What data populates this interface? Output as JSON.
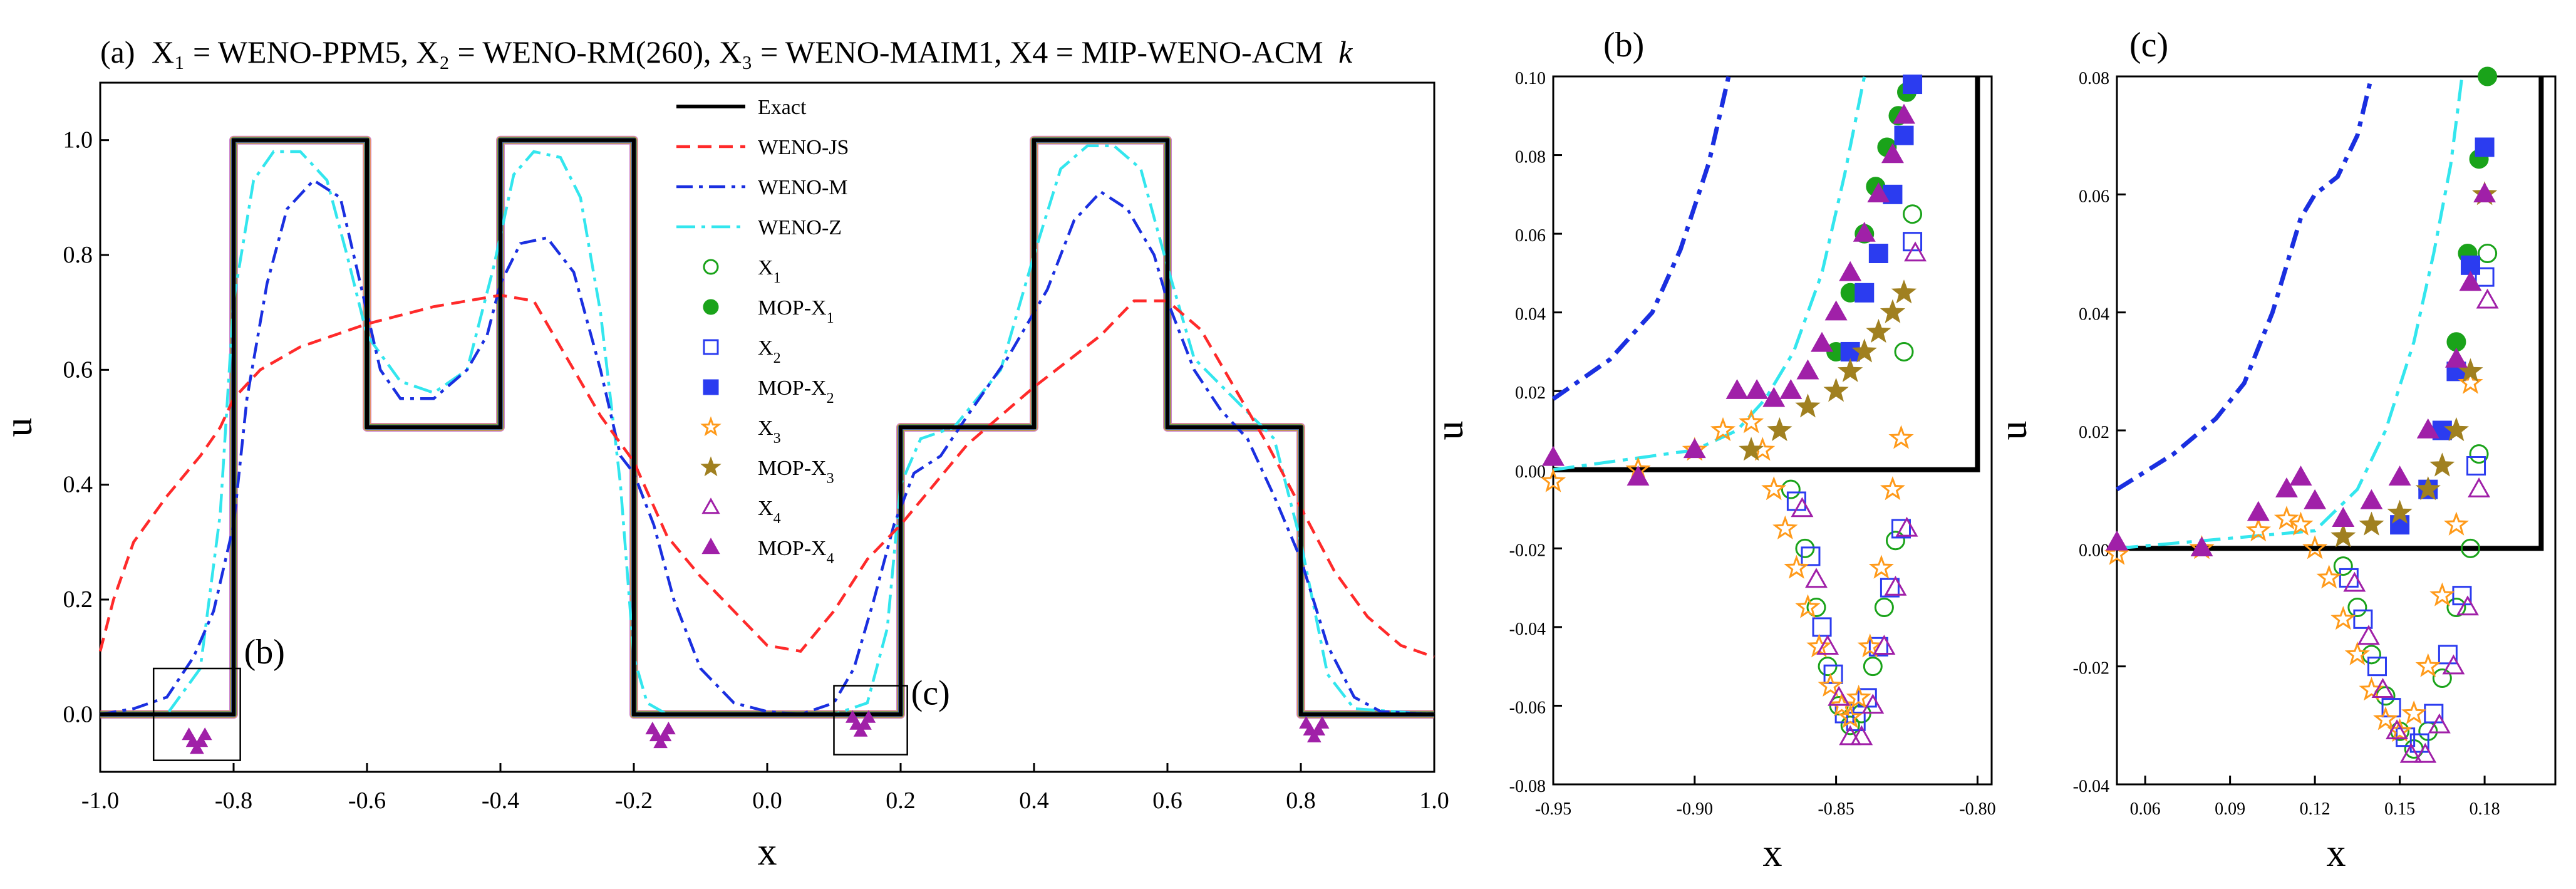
{
  "figure": {
    "title_prefix": "(a)",
    "title_text": "X₁ = WENO-PPM5, X₂ = WENO-RM(260), X₃ = WENO-MAIM1, X4 = MIP-WENO-ACM",
    "title_k": "k",
    "panel_b_label": "(b)",
    "panel_c_label": "(c)",
    "inset_b_label": "(b)",
    "inset_c_label": "(c)"
  },
  "colors": {
    "exact": "#000000",
    "weno_js": "#ff2a2a",
    "weno_m": "#1a2fe0",
    "weno_z": "#33e6ee",
    "x1": "#1aa31a",
    "x2": "#2b3cf0",
    "x3": "#ff9a1a",
    "x4": "#a020a8",
    "mop_x3": "#a08020"
  },
  "chart_data": [
    {
      "panel": "a",
      "type": "line",
      "xlabel": "x",
      "ylabel": "u",
      "xlim": [
        -1.0,
        1.0
      ],
      "ylim": [
        -0.1,
        1.1
      ],
      "x_ticks": [
        "-1.0",
        "-0.8",
        "-0.6",
        "-0.4",
        "-0.2",
        "0.0",
        "0.2",
        "0.4",
        "0.6",
        "0.8",
        "1.0"
      ],
      "y_ticks": [
        "0.0",
        "0.2",
        "0.4",
        "0.6",
        "0.8",
        "1.0"
      ],
      "legend": [
        {
          "name": "Exact",
          "sub": "",
          "style": "solid"
        },
        {
          "name": "WENO-JS",
          "sub": "",
          "style": "dash"
        },
        {
          "name": "WENO-M",
          "sub": "",
          "style": "dashdot"
        },
        {
          "name": "WENO-Z",
          "sub": "",
          "style": "dashdot-light"
        },
        {
          "name": "X",
          "sub": "1",
          "style": "circle"
        },
        {
          "name": "MOP-X",
          "sub": "1",
          "style": "dot"
        },
        {
          "name": "X",
          "sub": "2",
          "style": "square"
        },
        {
          "name": "MOP-X",
          "sub": "2",
          "style": "square-filled"
        },
        {
          "name": "X",
          "sub": "3",
          "style": "star"
        },
        {
          "name": "MOP-X",
          "sub": "3",
          "style": "star-filled"
        },
        {
          "name": "X",
          "sub": "4",
          "style": "triangle"
        },
        {
          "name": "MOP-X",
          "sub": "4",
          "style": "triangle-filled"
        }
      ],
      "series": [
        {
          "name": "Exact",
          "x": [
            -1.0,
            -0.8,
            -0.8,
            -0.6,
            -0.6,
            -0.4,
            -0.4,
            -0.2,
            -0.2,
            0.2,
            0.2,
            0.4,
            0.4,
            0.6,
            0.6,
            0.8,
            0.8,
            1.0
          ],
          "y": [
            0,
            0,
            1,
            1,
            0.5,
            0.5,
            1,
            1,
            0,
            0,
            0.5,
            0.5,
            1,
            1,
            0.5,
            0.5,
            0,
            0
          ]
        },
        {
          "name": "WENO-JS",
          "x": [
            -1.0,
            -0.98,
            -0.95,
            -0.9,
            -0.85,
            -0.82,
            -0.8,
            -0.76,
            -0.7,
            -0.6,
            -0.5,
            -0.4,
            -0.35,
            -0.3,
            -0.25,
            -0.2,
            -0.15,
            -0.1,
            -0.05,
            0.0,
            0.05,
            0.1,
            0.15,
            0.2,
            0.25,
            0.3,
            0.4,
            0.5,
            0.55,
            0.6,
            0.65,
            0.7,
            0.75,
            0.8,
            0.85,
            0.9,
            0.95,
            1.0
          ],
          "y": [
            0.11,
            0.2,
            0.3,
            0.38,
            0.45,
            0.5,
            0.55,
            0.6,
            0.64,
            0.68,
            0.71,
            0.73,
            0.72,
            0.62,
            0.52,
            0.44,
            0.31,
            0.24,
            0.18,
            0.12,
            0.11,
            0.18,
            0.27,
            0.33,
            0.4,
            0.47,
            0.57,
            0.66,
            0.72,
            0.72,
            0.67,
            0.57,
            0.47,
            0.36,
            0.25,
            0.17,
            0.12,
            0.1
          ]
        },
        {
          "name": "WENO-M",
          "x": [
            -1.0,
            -0.95,
            -0.9,
            -0.86,
            -0.83,
            -0.8,
            -0.78,
            -0.75,
            -0.72,
            -0.68,
            -0.64,
            -0.61,
            -0.58,
            -0.55,
            -0.5,
            -0.45,
            -0.42,
            -0.4,
            -0.37,
            -0.33,
            -0.29,
            -0.25,
            -0.22,
            -0.2,
            -0.17,
            -0.14,
            -0.1,
            -0.05,
            0.0,
            0.05,
            0.1,
            0.13,
            0.16,
            0.19,
            0.22,
            0.26,
            0.3,
            0.36,
            0.42,
            0.46,
            0.5,
            0.54,
            0.58,
            0.6,
            0.64,
            0.68,
            0.72,
            0.76,
            0.8,
            0.84,
            0.88,
            0.92,
            1.0
          ],
          "y": [
            0.0,
            0.01,
            0.03,
            0.1,
            0.18,
            0.33,
            0.55,
            0.75,
            0.88,
            0.93,
            0.9,
            0.75,
            0.6,
            0.55,
            0.55,
            0.6,
            0.66,
            0.75,
            0.82,
            0.83,
            0.77,
            0.6,
            0.45,
            0.42,
            0.33,
            0.2,
            0.08,
            0.02,
            0.005,
            0.0,
            0.02,
            0.08,
            0.2,
            0.33,
            0.42,
            0.45,
            0.52,
            0.62,
            0.74,
            0.86,
            0.91,
            0.88,
            0.8,
            0.72,
            0.6,
            0.53,
            0.48,
            0.38,
            0.27,
            0.12,
            0.03,
            0.005,
            0.0
          ]
        },
        {
          "name": "WENO-Z",
          "x": [
            -1.0,
            -0.9,
            -0.85,
            -0.82,
            -0.8,
            -0.77,
            -0.74,
            -0.7,
            -0.66,
            -0.63,
            -0.6,
            -0.55,
            -0.5,
            -0.45,
            -0.41,
            -0.38,
            -0.35,
            -0.31,
            -0.28,
            -0.25,
            -0.22,
            -0.2,
            -0.18,
            -0.15,
            -0.1,
            0.0,
            0.1,
            0.15,
            0.18,
            0.2,
            0.23,
            0.28,
            0.35,
            0.4,
            0.44,
            0.48,
            0.52,
            0.56,
            0.6,
            0.64,
            0.7,
            0.76,
            0.8,
            0.84,
            0.88,
            1.0
          ],
          "y": [
            0.0,
            0.0,
            0.08,
            0.35,
            0.72,
            0.93,
            0.98,
            0.98,
            0.93,
            0.8,
            0.66,
            0.58,
            0.56,
            0.6,
            0.78,
            0.94,
            0.98,
            0.97,
            0.9,
            0.7,
            0.4,
            0.1,
            0.02,
            0.0,
            0.0,
            0.0,
            0.0,
            0.02,
            0.15,
            0.4,
            0.48,
            0.5,
            0.6,
            0.8,
            0.95,
            0.99,
            0.99,
            0.95,
            0.78,
            0.62,
            0.55,
            0.48,
            0.3,
            0.07,
            0.01,
            0.0
          ]
        }
      ]
    },
    {
      "panel": "b",
      "type": "scatter",
      "xlabel": "x",
      "ylabel": "u",
      "xlim": [
        -0.95,
        -0.795
      ],
      "ylim": [
        -0.08,
        0.1
      ],
      "x_ticks": [
        "-0.95",
        "-0.90",
        "-0.85",
        "-0.80"
      ],
      "y_ticks": [
        "-0.08",
        "-0.06",
        "-0.04",
        "-0.02",
        "0.00",
        "0.02",
        "0.04",
        "0.06",
        "0.08",
        "0.10"
      ],
      "exact": {
        "x": [
          -0.95,
          -0.8,
          -0.8
        ],
        "y": [
          0,
          0,
          0.1
        ]
      },
      "weno_m": {
        "x": [
          -0.95,
          -0.93,
          -0.915,
          -0.905,
          -0.895,
          -0.888
        ],
        "y": [
          0.018,
          0.028,
          0.04,
          0.056,
          0.078,
          0.1
        ]
      },
      "weno_z": {
        "x": [
          -0.95,
          -0.9,
          -0.885,
          -0.875,
          -0.865,
          -0.855,
          -0.847,
          -0.84
        ],
        "y": [
          0.0,
          0.005,
          0.01,
          0.018,
          0.03,
          0.05,
          0.075,
          0.1
        ]
      },
      "markers": [
        {
          "name": "X1",
          "x": [
            -0.866,
            -0.861,
            -0.857,
            -0.853,
            -0.849,
            -0.845,
            -0.841,
            -0.837,
            -0.833,
            -0.829,
            -0.826,
            -0.823
          ],
          "y": [
            -0.005,
            -0.02,
            -0.035,
            -0.05,
            -0.06,
            -0.065,
            -0.062,
            -0.05,
            -0.035,
            -0.018,
            0.03,
            0.065
          ]
        },
        {
          "name": "MOP-X1",
          "x": [
            -0.85,
            -0.845,
            -0.84,
            -0.836,
            -0.832,
            -0.828,
            -0.825
          ],
          "y": [
            0.03,
            0.045,
            0.06,
            0.072,
            0.082,
            0.09,
            0.096
          ]
        },
        {
          "name": "X2",
          "x": [
            -0.864,
            -0.859,
            -0.855,
            -0.851,
            -0.847,
            -0.843,
            -0.839,
            -0.835,
            -0.831,
            -0.827,
            -0.823
          ],
          "y": [
            -0.008,
            -0.022,
            -0.04,
            -0.052,
            -0.062,
            -0.064,
            -0.058,
            -0.045,
            -0.03,
            -0.015,
            0.058
          ]
        },
        {
          "name": "MOP-X2",
          "x": [
            -0.845,
            -0.84,
            -0.835,
            -0.83,
            -0.826,
            -0.823
          ],
          "y": [
            0.03,
            0.045,
            0.055,
            0.07,
            0.085,
            0.098
          ]
        },
        {
          "name": "X3",
          "x": [
            -0.95,
            -0.92,
            -0.9,
            -0.89,
            -0.88,
            -0.876,
            -0.872,
            -0.868,
            -0.864,
            -0.86,
            -0.856,
            -0.852,
            -0.848,
            -0.845,
            -0.842,
            -0.838,
            -0.834,
            -0.83,
            -0.827
          ],
          "y": [
            -0.003,
            0.0,
            0.005,
            0.01,
            0.012,
            0.005,
            -0.005,
            -0.015,
            -0.025,
            -0.035,
            -0.045,
            -0.055,
            -0.06,
            -0.063,
            -0.058,
            -0.045,
            -0.025,
            -0.005,
            0.008
          ]
        },
        {
          "name": "MOP-X3",
          "x": [
            -0.88,
            -0.87,
            -0.86,
            -0.85,
            -0.845,
            -0.84,
            -0.835,
            -0.83,
            -0.826
          ],
          "y": [
            0.005,
            0.01,
            0.016,
            0.02,
            0.025,
            0.03,
            0.035,
            0.04,
            0.045
          ]
        },
        {
          "name": "X4",
          "x": [
            -0.862,
            -0.857,
            -0.853,
            -0.849,
            -0.845,
            -0.841,
            -0.837,
            -0.833,
            -0.829,
            -0.825,
            -0.822
          ],
          "y": [
            -0.01,
            -0.028,
            -0.045,
            -0.058,
            -0.068,
            -0.068,
            -0.06,
            -0.045,
            -0.03,
            -0.015,
            0.055
          ]
        },
        {
          "name": "MOP-X4",
          "x": [
            -0.95,
            -0.92,
            -0.9,
            -0.885,
            -0.878,
            -0.872,
            -0.866,
            -0.86,
            -0.855,
            -0.85,
            -0.845,
            -0.84,
            -0.835,
            -0.83,
            -0.826
          ],
          "y": [
            0.003,
            -0.002,
            0.005,
            0.02,
            0.02,
            0.018,
            0.02,
            0.025,
            0.032,
            0.04,
            0.05,
            0.06,
            0.07,
            0.08,
            0.09
          ]
        }
      ]
    },
    {
      "panel": "c",
      "type": "scatter",
      "xlabel": "x",
      "ylabel": "u",
      "xlim": [
        0.05,
        0.205
      ],
      "ylim": [
        -0.04,
        0.08
      ],
      "x_ticks": [
        "0.06",
        "0.09",
        "0.12",
        "0.15",
        "0.18"
      ],
      "y_ticks": [
        "-0.04",
        "-0.02",
        "0.00",
        "0.02",
        "0.04",
        "0.06",
        "0.08"
      ],
      "exact": {
        "x": [
          0.05,
          0.2,
          0.2
        ],
        "y": [
          0,
          0,
          0.08
        ]
      },
      "weno_m": {
        "x": [
          0.05,
          0.07,
          0.085,
          0.095,
          0.105,
          0.115,
          0.12,
          0.128,
          0.135,
          0.14
        ],
        "y": [
          0.01,
          0.016,
          0.022,
          0.028,
          0.04,
          0.056,
          0.06,
          0.063,
          0.07,
          0.08
        ]
      },
      "weno_z": {
        "x": [
          0.05,
          0.12,
          0.135,
          0.145,
          0.155,
          0.162,
          0.168,
          0.172
        ],
        "y": [
          0.0,
          0.003,
          0.01,
          0.02,
          0.035,
          0.05,
          0.065,
          0.08
        ]
      },
      "markers": [
        {
          "name": "X1",
          "x": [
            0.13,
            0.135,
            0.14,
            0.145,
            0.15,
            0.155,
            0.16,
            0.165,
            0.17,
            0.175,
            0.178,
            0.181
          ],
          "y": [
            -0.003,
            -0.01,
            -0.018,
            -0.025,
            -0.031,
            -0.034,
            -0.031,
            -0.022,
            -0.01,
            0.0,
            0.016,
            0.05
          ]
        },
        {
          "name": "MOP-X1",
          "x": [
            0.16,
            0.165,
            0.17,
            0.174,
            0.178,
            0.181
          ],
          "y": [
            0.01,
            0.02,
            0.035,
            0.05,
            0.066,
            0.08
          ]
        },
        {
          "name": "X2",
          "x": [
            0.132,
            0.137,
            0.142,
            0.147,
            0.152,
            0.157,
            0.162,
            0.167,
            0.172,
            0.177,
            0.18
          ],
          "y": [
            -0.005,
            -0.012,
            -0.02,
            -0.027,
            -0.032,
            -0.033,
            -0.028,
            -0.018,
            -0.008,
            0.014,
            0.046
          ]
        },
        {
          "name": "MOP-X2",
          "x": [
            0.15,
            0.16,
            0.165,
            0.17,
            0.175,
            0.18
          ],
          "y": [
            0.004,
            0.01,
            0.02,
            0.03,
            0.048,
            0.068
          ]
        },
        {
          "name": "X3",
          "x": [
            0.05,
            0.08,
            0.1,
            0.11,
            0.115,
            0.12,
            0.125,
            0.13,
            0.135,
            0.14,
            0.145,
            0.15,
            0.155,
            0.16,
            0.165,
            0.17,
            0.175
          ],
          "y": [
            -0.001,
            0.0,
            0.003,
            0.005,
            0.004,
            0.0,
            -0.005,
            -0.012,
            -0.018,
            -0.024,
            -0.029,
            -0.031,
            -0.028,
            -0.02,
            -0.008,
            0.004,
            0.028
          ]
        },
        {
          "name": "MOP-X3",
          "x": [
            0.13,
            0.14,
            0.15,
            0.16,
            0.165,
            0.17,
            0.175,
            0.18
          ],
          "y": [
            0.002,
            0.004,
            0.006,
            0.01,
            0.014,
            0.02,
            0.03,
            0.06
          ]
        },
        {
          "name": "X4",
          "x": [
            0.134,
            0.139,
            0.144,
            0.149,
            0.154,
            0.159,
            0.164,
            0.169,
            0.174,
            0.178,
            0.181
          ],
          "y": [
            -0.006,
            -0.015,
            -0.024,
            -0.031,
            -0.035,
            -0.035,
            -0.03,
            -0.02,
            -0.01,
            0.01,
            0.042
          ]
        },
        {
          "name": "MOP-X4",
          "x": [
            0.05,
            0.08,
            0.1,
            0.11,
            0.115,
            0.12,
            0.13,
            0.14,
            0.15,
            0.16,
            0.17,
            0.175,
            0.18
          ],
          "y": [
            0.001,
            0.0,
            0.006,
            0.01,
            0.012,
            0.008,
            0.005,
            0.008,
            0.012,
            0.02,
            0.032,
            0.045,
            0.06
          ]
        }
      ]
    }
  ]
}
